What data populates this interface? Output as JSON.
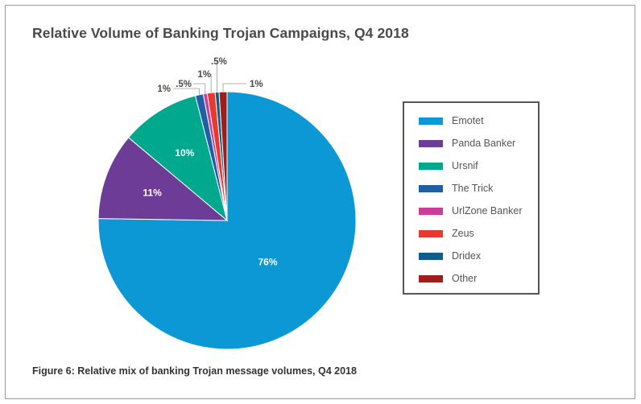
{
  "title": "Relative Volume of Banking Trojan Campaigns, Q4 2018",
  "caption": "Figure 6: Relative mix of banking Trojan message volumes, Q4 2018",
  "chart_data": {
    "type": "pie",
    "title": "Relative Volume of Banking Trojan Campaigns, Q4 2018",
    "legend_position": "right",
    "slices": [
      {
        "name": "Emotet",
        "value": 76,
        "label": "76%",
        "color": "#0b98d4"
      },
      {
        "name": "Panda Banker",
        "value": 11,
        "label": "11%",
        "color": "#6d3c96"
      },
      {
        "name": "Ursnif",
        "value": 10,
        "label": "10%",
        "color": "#00a88e"
      },
      {
        "name": "The Trick",
        "value": 1,
        "label": "1%",
        "color": "#1f5fa8"
      },
      {
        "name": "UrlZone Banker",
        "value": 0.5,
        "label": ".5%",
        "color": "#c83f9a"
      },
      {
        "name": "Zeus",
        "value": 1,
        "label": "1%",
        "color": "#e8392e"
      },
      {
        "name": "Dridex",
        "value": 0.5,
        "label": ".5%",
        "color": "#0e5e87"
      },
      {
        "name": "Other",
        "value": 1,
        "label": "1%",
        "color": "#9e1e1e"
      }
    ]
  }
}
